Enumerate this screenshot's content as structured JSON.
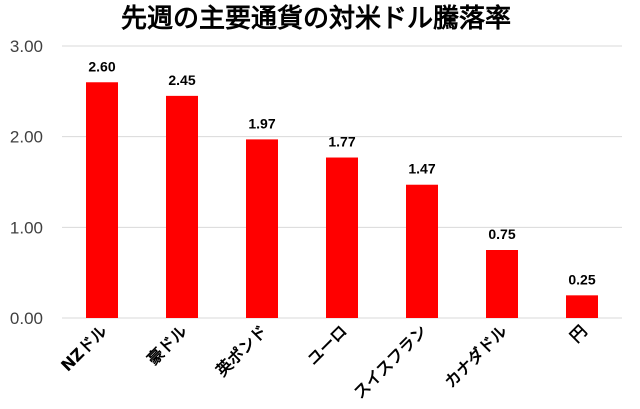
{
  "chart_data": {
    "type": "bar",
    "title": "先週の主要通貨の対米ドル騰落率",
    "categories": [
      "NZドル",
      "豪ドル",
      "英ポンド",
      "ユーロ",
      "スイスフラン",
      "カナダドル",
      "円"
    ],
    "values": [
      2.6,
      2.45,
      1.97,
      1.77,
      1.47,
      0.75,
      0.25
    ],
    "value_labels": [
      "2.60",
      "2.45",
      "1.97",
      "1.77",
      "1.47",
      "0.75",
      "0.25"
    ],
    "ylim": [
      0,
      3
    ],
    "y_ticks": [
      "0.00",
      "1.00",
      "2.00",
      "3.00"
    ],
    "xlabel": "",
    "ylabel": "",
    "grid": true,
    "bar_color": "#ff0000",
    "grid_color": "#d9d9d9"
  }
}
